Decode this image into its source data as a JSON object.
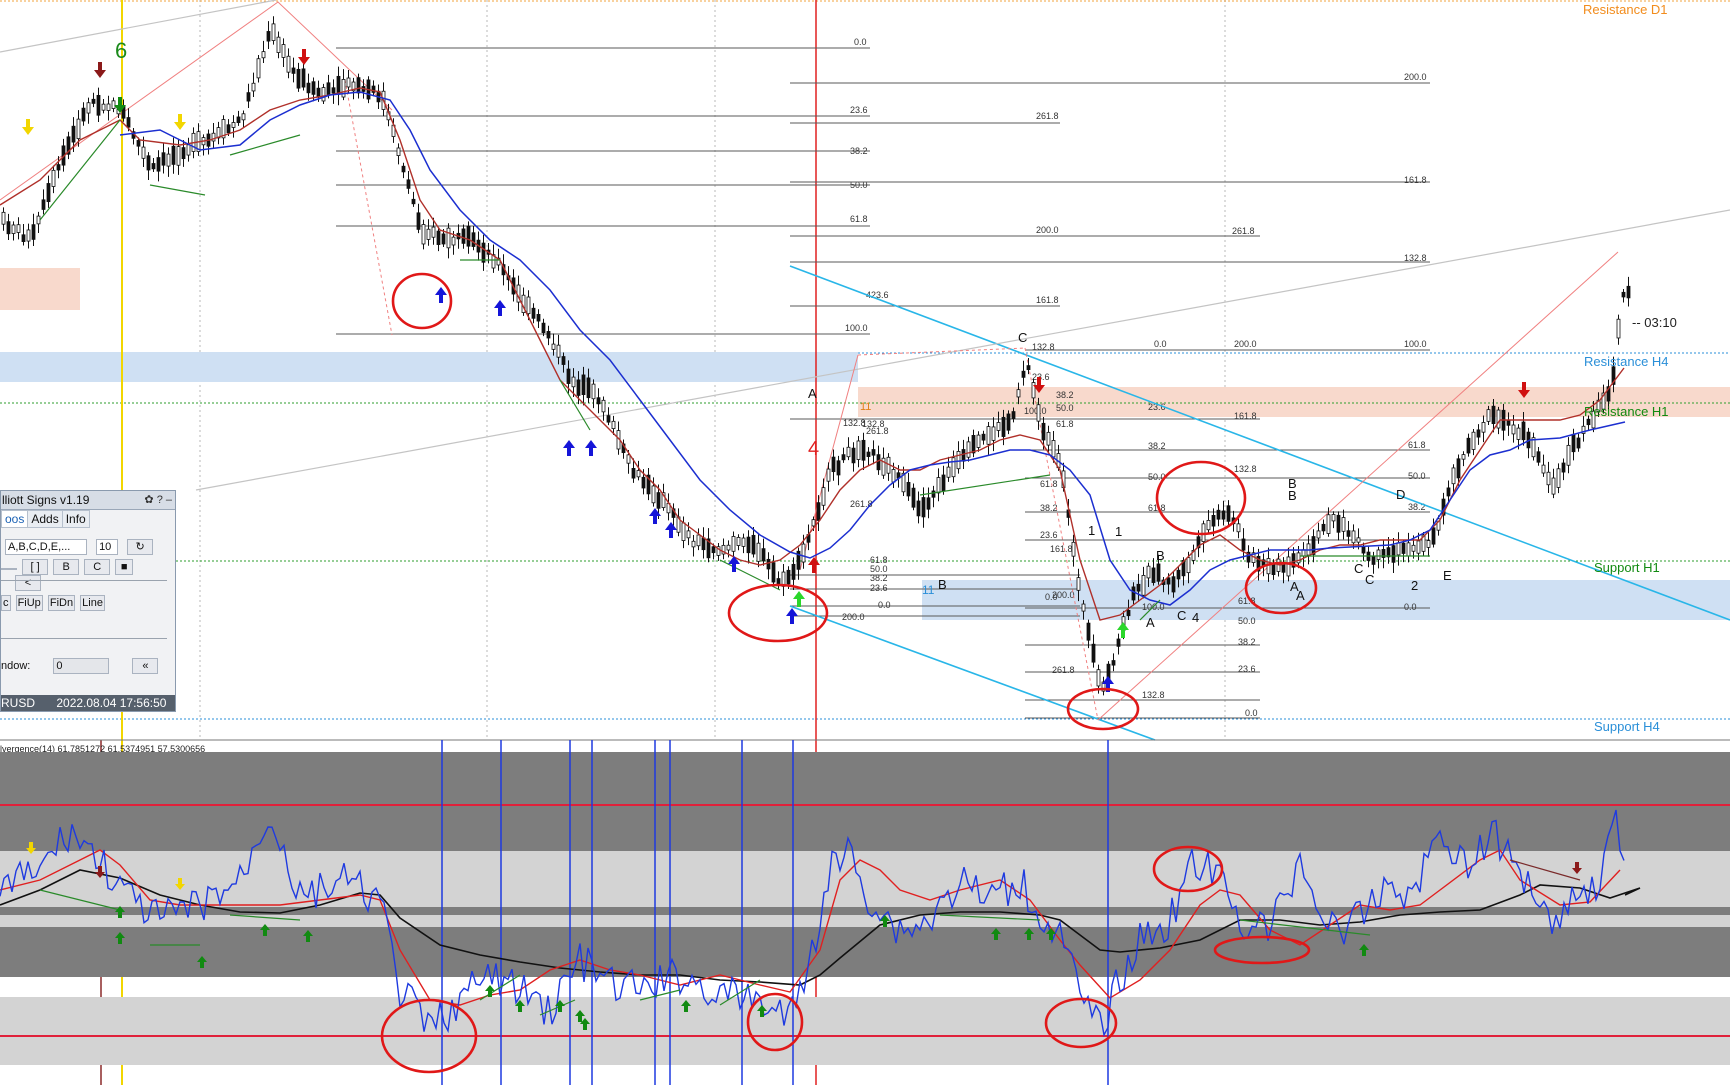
{
  "chart": {
    "indicator_label": "lvergence(14) 61.7851272 61.5374951 57.5300656",
    "wave_labels": {
      "w6": "6",
      "w4": "4",
      "wA": "A",
      "w1a": "11",
      "w1b": "11",
      "wB1": "B",
      "wC_top": "C",
      "w1_1": "1",
      "w1_2": "1",
      "wA2": "A",
      "wB2": "B",
      "wC2": "C",
      "w4b": "4",
      "wBB1": "B",
      "wBB2": "B",
      "wD": "D",
      "wE": "E",
      "wC3": "C",
      "wC4": "C",
      "w2": "2",
      "wA3": "A",
      "wA4": "A"
    },
    "levels": {
      "resistance_d1": "Resistance D1",
      "resistance_h4": "Resistance H4",
      "resistance_h1": "Resistance H1",
      "support_h1": "Support H1",
      "support_h4": "Support H4"
    },
    "timer": "-- 03:10",
    "fib_labels": [
      "0.0",
      "23.6",
      "38.2",
      "50.0",
      "61.8",
      "100.0",
      "161.8",
      "200.0",
      "261.8",
      "423.6",
      "132.8"
    ]
  },
  "panel": {
    "title": "lliott Signs v1.19",
    "title_controls": "✿ ? –",
    "tabs": [
      "oos",
      "Adds",
      "Info"
    ],
    "mode_select": "A,B,C,D,E,...",
    "depth_value": "10",
    "reset_label": "↻",
    "row2": [
      "",
      "[ ]",
      "B",
      "C",
      "■"
    ],
    "back_label": "<",
    "row3": [
      "c",
      "FiUp",
      "FiDn",
      "Line"
    ],
    "window_label": "ndow:",
    "window_value": "0",
    "collapse_label": "«",
    "symbol": "RUSD",
    "datetime": "2022.08.04 17:56:50"
  },
  "colors": {
    "up_arrow": "#1515d8",
    "down_arrow": "#d01010",
    "ema_fast": "#c0392b",
    "ema_slow": "#1c2fd0",
    "fib_line": "#555555",
    "trend_line": "#29b6e8",
    "circle": "#e01818",
    "support_h1": "#118a11",
    "resistance_h4": "#2a8fd8",
    "resistance_d1": "#f28c1c"
  }
}
